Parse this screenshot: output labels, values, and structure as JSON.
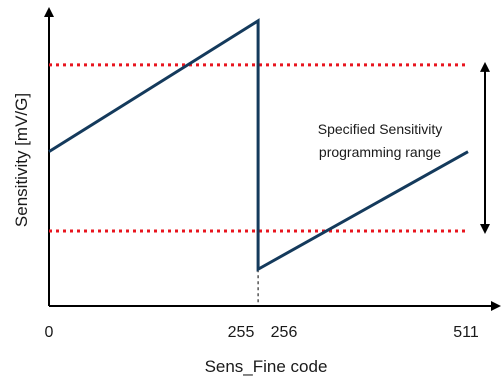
{
  "chart_data": {
    "type": "line",
    "title": "",
    "xlabel": "Sens_Fine code",
    "ylabel": "Sensitivity [mV/G]",
    "x_ticks": [
      "0",
      "255",
      "256",
      "511"
    ],
    "xlim": [
      0,
      511
    ],
    "ylim": [
      0,
      1
    ],
    "grid": false,
    "series": [
      {
        "x": [
          0,
          255
        ],
        "y": [
          0.525,
          0.97
        ]
      },
      {
        "x": [
          256,
          511
        ],
        "y": [
          0.125,
          0.525
        ]
      }
    ],
    "reference_lines": [
      {
        "y": 0.82,
        "style": "dotted",
        "color": "#e8141e"
      },
      {
        "y": 0.255,
        "style": "dotted",
        "color": "#e8141e"
      }
    ],
    "annotation": {
      "lines": [
        "Specified Sensitivity",
        "programming range"
      ]
    },
    "colors": {
      "line": "#143a5c",
      "reference": "#e8141e",
      "axis": "#000000"
    }
  }
}
